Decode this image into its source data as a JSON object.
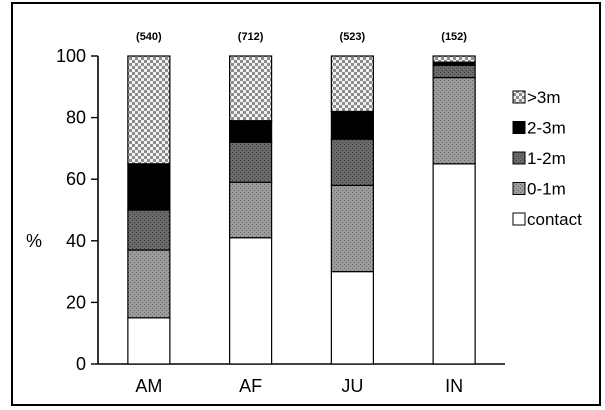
{
  "chart_data": {
    "type": "bar",
    "stacked": true,
    "title": "",
    "xlabel": "",
    "ylabel": "%",
    "ylim": [
      0,
      100
    ],
    "yticks": [
      0,
      20,
      40,
      60,
      80,
      100
    ],
    "grid": false,
    "legend_position": "right",
    "categories": [
      "AM",
      "AF",
      "JU",
      "IN"
    ],
    "sample_sizes": [
      "(540)",
      "(712)",
      "(523)",
      "(152)"
    ],
    "series": [
      {
        "name": "contact",
        "values": [
          15,
          41,
          30,
          65
        ],
        "color": "#ffffff",
        "pattern": "white"
      },
      {
        "name": "0-1m",
        "values": [
          22,
          18,
          28,
          28
        ],
        "color": "#9a9a9a",
        "pattern": "gray"
      },
      {
        "name": "1-2m",
        "values": [
          13,
          13,
          15,
          4
        ],
        "color": "#6b6b6b",
        "pattern": "darkgray"
      },
      {
        "name": "2-3m",
        "values": [
          15,
          7,
          9,
          1
        ],
        "color": "#000000",
        "pattern": "black"
      },
      {
        "name": ">3m",
        "values": [
          35,
          21,
          18,
          2
        ],
        "color": "#d8d8d8",
        "pattern": "checker"
      }
    ],
    "legend_order": [
      ">3m",
      "2-3m",
      "1-2m",
      "0-1m",
      "contact"
    ]
  }
}
